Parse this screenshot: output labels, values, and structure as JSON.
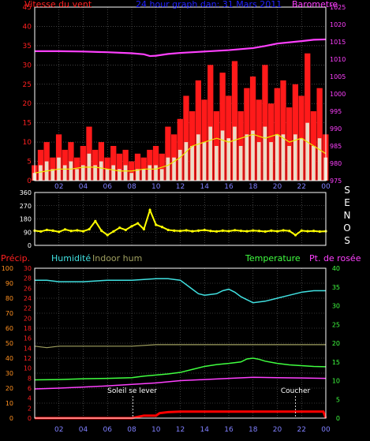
{
  "colors": {
    "background": "#000000",
    "frame": "#ffffff",
    "grid": "#6a6a6a",
    "wind_axis": "#ff2020",
    "wind": "#ff1a1a",
    "wind_gust": "#ff1a1a",
    "wind_avg": "#e8e800",
    "pressure_axis": "#ff40ff",
    "pressure": "#ff40ff",
    "direction": "#ffff00",
    "title": "#2222ff",
    "precip_axis": "#ff2020",
    "precip": "#ff0000",
    "humidity_axis": "#ff9020",
    "humidity": "#40e0e0",
    "indoor_hum": "#a0a060",
    "temp_axis": "#40ff40",
    "temperature": "#40ff40",
    "dew_point": "#ff40ff",
    "sun_label": "#ffffff",
    "time_axis": "#8080ff",
    "direction_letters": "#ffffff"
  },
  "chart_data": [
    {
      "type": "line",
      "title": "24 hour graph dan:  31 Mars 2011",
      "left_axis_title": "Vitesse du vent",
      "right_axis_title": "Barometre",
      "left_ticks": [
        "0",
        "5",
        "10",
        "15",
        "20",
        "25",
        "30",
        "35",
        "40",
        "45"
      ],
      "right_ticks": [
        "975",
        "980",
        "985",
        "990",
        "995",
        "1000",
        "1005",
        "1010",
        "1015",
        "1020",
        "1025"
      ],
      "x_ticks": [
        "02",
        "04",
        "06",
        "08",
        "10",
        "12",
        "14",
        "16",
        "18",
        "20",
        "22",
        "00"
      ],
      "ylim_left": [
        0,
        45
      ],
      "ylim_right": [
        975,
        1025
      ],
      "x_range_hours": [
        0,
        24
      ],
      "series": [
        {
          "key": "gust",
          "x": [
            0,
            0.5,
            1,
            1.5,
            2,
            2.5,
            3,
            3.5,
            4,
            4.5,
            5,
            5.5,
            6,
            6.5,
            7,
            7.5,
            8,
            8.5,
            9,
            9.5,
            10,
            10.5,
            11,
            11.5,
            12,
            12.5,
            13,
            13.5,
            14,
            14.5,
            15,
            15.5,
            16,
            16.5,
            17,
            17.5,
            18,
            18.5,
            19,
            19.5,
            20,
            20.5,
            21,
            21.5,
            22,
            22.5,
            23,
            23.5,
            24
          ],
          "values": [
            4,
            8,
            10,
            6,
            12,
            8,
            10,
            6,
            9,
            14,
            8,
            10,
            6,
            9,
            7,
            8,
            5,
            7,
            6,
            8,
            9,
            7,
            14,
            12,
            16,
            22,
            18,
            26,
            21,
            30,
            18,
            28,
            22,
            31,
            18,
            24,
            27,
            21,
            30,
            20,
            24,
            26,
            19,
            25,
            22,
            33,
            18,
            24,
            12
          ]
        },
        {
          "key": "wind",
          "x": [
            0,
            0.5,
            1,
            1.5,
            2,
            2.5,
            3,
            3.5,
            4,
            4.5,
            5,
            5.5,
            6,
            6.5,
            7,
            7.5,
            8,
            8.5,
            9,
            9.5,
            10,
            10.5,
            11,
            11.5,
            12,
            12.5,
            13,
            13.5,
            14,
            14.5,
            15,
            15.5,
            16,
            16.5,
            17,
            17.5,
            18,
            18.5,
            19,
            19.5,
            20,
            20.5,
            21,
            21.5,
            22,
            22.5,
            23,
            23.5,
            24
          ],
          "values": [
            2,
            4,
            5,
            3,
            6,
            4,
            5,
            3,
            4,
            7,
            4,
            5,
            3,
            4,
            3,
            4,
            2,
            3,
            3,
            4,
            4,
            3,
            6,
            6,
            8,
            10,
            9,
            12,
            10,
            14,
            9,
            13,
            11,
            14,
            9,
            12,
            13,
            10,
            14,
            10,
            12,
            12,
            9,
            12,
            11,
            15,
            9,
            11,
            6
          ]
        },
        {
          "key": "avg",
          "x": [
            0,
            1,
            2,
            3,
            4,
            5,
            6,
            7,
            8,
            9,
            10,
            11,
            12,
            13,
            14,
            15,
            16,
            17,
            18,
            19,
            20,
            21,
            22,
            23,
            24
          ],
          "values": [
            2,
            2.5,
            3,
            3,
            3.5,
            3.5,
            3,
            2.5,
            2.5,
            3,
            3,
            4,
            6,
            9,
            10,
            11,
            10,
            11,
            12,
            11,
            12,
            10,
            11,
            9,
            7
          ]
        },
        {
          "key": "pressure",
          "x": [
            0,
            2,
            4,
            6,
            8,
            9,
            9.5,
            10,
            11,
            12,
            14,
            16,
            18,
            19,
            20,
            22,
            23,
            24
          ],
          "values": [
            1012.3,
            1012.3,
            1012.2,
            1012.0,
            1011.7,
            1011.4,
            1010.9,
            1011.0,
            1011.5,
            1011.8,
            1012.2,
            1012.6,
            1013.2,
            1013.8,
            1014.5,
            1015.2,
            1015.6,
            1015.7
          ]
        }
      ]
    },
    {
      "type": "scatter",
      "left_ticks": [
        "0",
        "90",
        "180",
        "270",
        "360"
      ],
      "ylim": [
        0,
        360
      ],
      "direction_letters": [
        "S",
        "E",
        "N",
        "O",
        "S"
      ],
      "series": [
        {
          "key": "direction",
          "x": [
            0,
            0.5,
            1,
            1.5,
            2,
            2.5,
            3,
            3.5,
            4,
            4.5,
            5,
            5.5,
            6,
            6.5,
            7,
            7.5,
            8,
            8.5,
            9,
            9.5,
            10,
            10.5,
            11,
            11.5,
            12,
            12.5,
            13,
            13.5,
            14,
            14.5,
            15,
            15.5,
            16,
            16.5,
            17,
            17.5,
            18,
            18.5,
            19,
            19.5,
            20,
            20.5,
            21,
            21.5,
            22,
            22.5,
            23,
            23.5,
            24
          ],
          "values": [
            100,
            95,
            105,
            100,
            92,
            108,
            98,
            102,
            96,
            110,
            165,
            100,
            70,
            95,
            120,
            105,
            130,
            150,
            110,
            240,
            140,
            125,
            105,
            100,
            98,
            102,
            96,
            100,
            104,
            98,
            95,
            100,
            97,
            103,
            99,
            96,
            101,
            98,
            94,
            100,
            96,
            102,
            98,
            70,
            100,
            96,
            98,
            94,
            96
          ]
        }
      ]
    },
    {
      "type": "line",
      "left_outer_title": "Précip.",
      "left_inner_title": "Humidité",
      "indoor_title": "Indoor hum",
      "right_inner_title": "Temperature",
      "right_outer_title": "Pt. de rosée",
      "outer_left_ticks": [
        "0",
        "10",
        "20",
        "30",
        "40",
        "50",
        "60",
        "70",
        "80",
        "90",
        "100"
      ],
      "inner_left_ticks": [
        "0",
        "2",
        "4",
        "6",
        "8",
        "10",
        "12",
        "14",
        "16",
        "18",
        "20",
        "22",
        "24",
        "26",
        "28",
        "30"
      ],
      "right_ticks": [
        "0",
        "5",
        "10",
        "15",
        "20",
        "25",
        "30",
        "35",
        "40"
      ],
      "x_ticks": [
        "02",
        "04",
        "06",
        "08",
        "10",
        "12",
        "14",
        "16",
        "18",
        "20",
        "22",
        "00"
      ],
      "ylim_humidity": [
        0,
        100
      ],
      "ylim_precip": [
        0,
        30
      ],
      "ylim_temperature": [
        0,
        40
      ],
      "sun_labels": {
        "sunrise": "Soleil se lever",
        "sunset": "Coucher"
      },
      "sun_hours": {
        "sunrise": 8.1,
        "sunset": 21.5
      },
      "series": [
        {
          "key": "humidity",
          "x": [
            0,
            1,
            2,
            4,
            6,
            8,
            10,
            11,
            12,
            12.5,
            13,
            13.5,
            14,
            15,
            15.5,
            16,
            16.5,
            17,
            17.5,
            18,
            19,
            20,
            21,
            22,
            23,
            24
          ],
          "values": [
            92,
            92,
            91,
            91,
            92,
            92,
            93,
            93,
            92,
            89,
            86,
            83,
            82,
            83,
            85,
            86,
            84,
            81,
            79,
            77,
            78,
            80,
            82,
            84,
            85,
            85
          ]
        },
        {
          "key": "indoor_hum",
          "x": [
            0,
            1,
            2,
            4,
            6,
            8,
            10,
            12,
            14,
            16,
            18,
            20,
            22,
            24
          ],
          "values": [
            48,
            47,
            48,
            48,
            48,
            48,
            49,
            49,
            49,
            49,
            49,
            49,
            49,
            49
          ]
        },
        {
          "key": "temperature",
          "x": [
            0,
            2,
            4,
            6,
            8,
            9,
            10,
            11,
            12,
            13,
            14,
            15,
            16,
            17,
            17.5,
            18,
            18.5,
            19,
            20,
            21,
            22,
            23,
            24
          ],
          "values": [
            10.2,
            10.3,
            10.5,
            10.6,
            10.8,
            11.2,
            11.5,
            11.8,
            12.2,
            13.0,
            13.8,
            14.3,
            14.6,
            15.0,
            15.8,
            16.0,
            15.7,
            15.2,
            14.6,
            14.2,
            14.0,
            13.8,
            13.7
          ]
        },
        {
          "key": "dew_point",
          "x": [
            0,
            2,
            4,
            6,
            8,
            10,
            12,
            14,
            16,
            18,
            20,
            22,
            24
          ],
          "values": [
            7.8,
            8.0,
            8.3,
            8.6,
            9.0,
            9.4,
            10.0,
            10.3,
            10.6,
            10.9,
            10.8,
            10.7,
            10.6
          ]
        },
        {
          "key": "precip",
          "x": [
            0,
            8,
            9,
            10,
            10.3,
            11,
            12,
            14,
            16,
            18,
            20,
            22,
            23.8,
            24
          ],
          "values": [
            0,
            0,
            0.5,
            0.5,
            1,
            1.2,
            1.3,
            1.3,
            1.3,
            1.3,
            1.3,
            1.3,
            1.3,
            0
          ]
        }
      ]
    }
  ]
}
